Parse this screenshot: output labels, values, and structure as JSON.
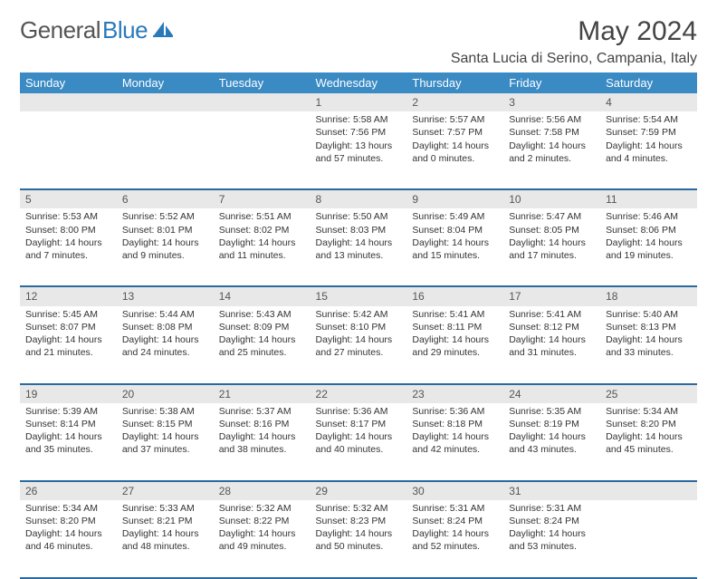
{
  "logo": {
    "general": "General",
    "blue": "Blue"
  },
  "title": "May 2024",
  "location": "Santa Lucia di Serino, Campania, Italy",
  "colors": {
    "header_bg": "#3a8ac4",
    "header_text": "#ffffff",
    "daynum_bg": "#e8e8e8",
    "row_border": "#2a6aa0",
    "logo_blue": "#2a7ab9"
  },
  "day_headers": [
    "Sunday",
    "Monday",
    "Tuesday",
    "Wednesday",
    "Thursday",
    "Friday",
    "Saturday"
  ],
  "weeks": [
    [
      null,
      null,
      null,
      {
        "n": "1",
        "sr": "Sunrise: 5:58 AM",
        "ss": "Sunset: 7:56 PM",
        "d1": "Daylight: 13 hours",
        "d2": "and 57 minutes."
      },
      {
        "n": "2",
        "sr": "Sunrise: 5:57 AM",
        "ss": "Sunset: 7:57 PM",
        "d1": "Daylight: 14 hours",
        "d2": "and 0 minutes."
      },
      {
        "n": "3",
        "sr": "Sunrise: 5:56 AM",
        "ss": "Sunset: 7:58 PM",
        "d1": "Daylight: 14 hours",
        "d2": "and 2 minutes."
      },
      {
        "n": "4",
        "sr": "Sunrise: 5:54 AM",
        "ss": "Sunset: 7:59 PM",
        "d1": "Daylight: 14 hours",
        "d2": "and 4 minutes."
      }
    ],
    [
      {
        "n": "5",
        "sr": "Sunrise: 5:53 AM",
        "ss": "Sunset: 8:00 PM",
        "d1": "Daylight: 14 hours",
        "d2": "and 7 minutes."
      },
      {
        "n": "6",
        "sr": "Sunrise: 5:52 AM",
        "ss": "Sunset: 8:01 PM",
        "d1": "Daylight: 14 hours",
        "d2": "and 9 minutes."
      },
      {
        "n": "7",
        "sr": "Sunrise: 5:51 AM",
        "ss": "Sunset: 8:02 PM",
        "d1": "Daylight: 14 hours",
        "d2": "and 11 minutes."
      },
      {
        "n": "8",
        "sr": "Sunrise: 5:50 AM",
        "ss": "Sunset: 8:03 PM",
        "d1": "Daylight: 14 hours",
        "d2": "and 13 minutes."
      },
      {
        "n": "9",
        "sr": "Sunrise: 5:49 AM",
        "ss": "Sunset: 8:04 PM",
        "d1": "Daylight: 14 hours",
        "d2": "and 15 minutes."
      },
      {
        "n": "10",
        "sr": "Sunrise: 5:47 AM",
        "ss": "Sunset: 8:05 PM",
        "d1": "Daylight: 14 hours",
        "d2": "and 17 minutes."
      },
      {
        "n": "11",
        "sr": "Sunrise: 5:46 AM",
        "ss": "Sunset: 8:06 PM",
        "d1": "Daylight: 14 hours",
        "d2": "and 19 minutes."
      }
    ],
    [
      {
        "n": "12",
        "sr": "Sunrise: 5:45 AM",
        "ss": "Sunset: 8:07 PM",
        "d1": "Daylight: 14 hours",
        "d2": "and 21 minutes."
      },
      {
        "n": "13",
        "sr": "Sunrise: 5:44 AM",
        "ss": "Sunset: 8:08 PM",
        "d1": "Daylight: 14 hours",
        "d2": "and 24 minutes."
      },
      {
        "n": "14",
        "sr": "Sunrise: 5:43 AM",
        "ss": "Sunset: 8:09 PM",
        "d1": "Daylight: 14 hours",
        "d2": "and 25 minutes."
      },
      {
        "n": "15",
        "sr": "Sunrise: 5:42 AM",
        "ss": "Sunset: 8:10 PM",
        "d1": "Daylight: 14 hours",
        "d2": "and 27 minutes."
      },
      {
        "n": "16",
        "sr": "Sunrise: 5:41 AM",
        "ss": "Sunset: 8:11 PM",
        "d1": "Daylight: 14 hours",
        "d2": "and 29 minutes."
      },
      {
        "n": "17",
        "sr": "Sunrise: 5:41 AM",
        "ss": "Sunset: 8:12 PM",
        "d1": "Daylight: 14 hours",
        "d2": "and 31 minutes."
      },
      {
        "n": "18",
        "sr": "Sunrise: 5:40 AM",
        "ss": "Sunset: 8:13 PM",
        "d1": "Daylight: 14 hours",
        "d2": "and 33 minutes."
      }
    ],
    [
      {
        "n": "19",
        "sr": "Sunrise: 5:39 AM",
        "ss": "Sunset: 8:14 PM",
        "d1": "Daylight: 14 hours",
        "d2": "and 35 minutes."
      },
      {
        "n": "20",
        "sr": "Sunrise: 5:38 AM",
        "ss": "Sunset: 8:15 PM",
        "d1": "Daylight: 14 hours",
        "d2": "and 37 minutes."
      },
      {
        "n": "21",
        "sr": "Sunrise: 5:37 AM",
        "ss": "Sunset: 8:16 PM",
        "d1": "Daylight: 14 hours",
        "d2": "and 38 minutes."
      },
      {
        "n": "22",
        "sr": "Sunrise: 5:36 AM",
        "ss": "Sunset: 8:17 PM",
        "d1": "Daylight: 14 hours",
        "d2": "and 40 minutes."
      },
      {
        "n": "23",
        "sr": "Sunrise: 5:36 AM",
        "ss": "Sunset: 8:18 PM",
        "d1": "Daylight: 14 hours",
        "d2": "and 42 minutes."
      },
      {
        "n": "24",
        "sr": "Sunrise: 5:35 AM",
        "ss": "Sunset: 8:19 PM",
        "d1": "Daylight: 14 hours",
        "d2": "and 43 minutes."
      },
      {
        "n": "25",
        "sr": "Sunrise: 5:34 AM",
        "ss": "Sunset: 8:20 PM",
        "d1": "Daylight: 14 hours",
        "d2": "and 45 minutes."
      }
    ],
    [
      {
        "n": "26",
        "sr": "Sunrise: 5:34 AM",
        "ss": "Sunset: 8:20 PM",
        "d1": "Daylight: 14 hours",
        "d2": "and 46 minutes."
      },
      {
        "n": "27",
        "sr": "Sunrise: 5:33 AM",
        "ss": "Sunset: 8:21 PM",
        "d1": "Daylight: 14 hours",
        "d2": "and 48 minutes."
      },
      {
        "n": "28",
        "sr": "Sunrise: 5:32 AM",
        "ss": "Sunset: 8:22 PM",
        "d1": "Daylight: 14 hours",
        "d2": "and 49 minutes."
      },
      {
        "n": "29",
        "sr": "Sunrise: 5:32 AM",
        "ss": "Sunset: 8:23 PM",
        "d1": "Daylight: 14 hours",
        "d2": "and 50 minutes."
      },
      {
        "n": "30",
        "sr": "Sunrise: 5:31 AM",
        "ss": "Sunset: 8:24 PM",
        "d1": "Daylight: 14 hours",
        "d2": "and 52 minutes."
      },
      {
        "n": "31",
        "sr": "Sunrise: 5:31 AM",
        "ss": "Sunset: 8:24 PM",
        "d1": "Daylight: 14 hours",
        "d2": "and 53 minutes."
      },
      null
    ]
  ]
}
